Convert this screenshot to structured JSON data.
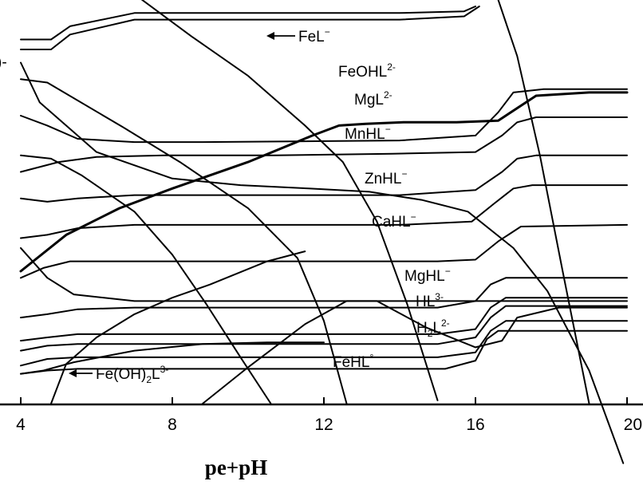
{
  "chart_data": {
    "type": "line",
    "title": "",
    "xlabel": "pe+pH",
    "ylabel": "",
    "xlim": [
      4,
      20
    ],
    "xticks": [
      4,
      8,
      12,
      16,
      20
    ],
    "grid": false,
    "legend": "none",
    "labels": [
      {
        "key": "fel",
        "base": "FeL",
        "sup": "−",
        "arrow": "left"
      },
      {
        "key": "feohl",
        "base": "FeOHL",
        "sup": "2-"
      },
      {
        "key": "mgl",
        "base": "MgL",
        "sup": "2-"
      },
      {
        "key": "mnhl",
        "base": "MnHL",
        "sup": "−"
      },
      {
        "key": "znhl",
        "base": "ZnHL",
        "sup": "−"
      },
      {
        "key": "cahl",
        "base": "CaHL",
        "sup": "−"
      },
      {
        "key": "mghl",
        "base": "MgHL",
        "sup": "−"
      },
      {
        "key": "hl",
        "base": "HL",
        "sup": "3-"
      },
      {
        "key": "h2l",
        "base": "H",
        "sub": "2",
        "base2": "L",
        "sup": "2-"
      },
      {
        "key": "fehl",
        "base": "FeHL",
        "sup": "°"
      },
      {
        "key": "feoh2l",
        "base": "Fe(OH)",
        "sub": "2",
        "base2": "L",
        "sup": "3-",
        "arrow": "left"
      },
      {
        "key": "clipped",
        "base": ")-"
      }
    ],
    "series": [
      {
        "x": [
          4,
          4.8,
          5.3,
          7,
          14,
          15.7,
          16
        ],
        "y": [
          11.0,
          11.0,
          11.4,
          11.8,
          11.8,
          11.85,
          12.0
        ]
      },
      {
        "x": [
          4,
          4.8,
          5.3,
          7,
          14,
          15.7,
          16.1
        ],
        "y": [
          10.7,
          10.7,
          11.15,
          11.6,
          11.6,
          11.7,
          12.0
        ]
      },
      {
        "x": [
          4,
          4.5,
          6,
          8,
          9.8,
          11.6,
          13.2,
          14.6,
          15.8,
          17,
          17.9,
          19,
          19.9
        ],
        "y": [
          10.3,
          9.1,
          7.6,
          6.8,
          6.6,
          6.5,
          6.4,
          6.15,
          5.8,
          4.7,
          3.4,
          1.0,
          -1.8
        ]
      },
      {
        "x": [
          7.2,
          8.5,
          10,
          11.5,
          12.5,
          13.4,
          14.2,
          15
        ],
        "y": [
          12.2,
          11.1,
          9.9,
          8.4,
          7.3,
          5.5,
          3.0,
          0.1
        ]
      },
      {
        "x": [
          4,
          4.7,
          6.7,
          8.2,
          10,
          11.3,
          12,
          12.6
        ],
        "y": [
          9.8,
          9.7,
          8.35,
          7.3,
          5.9,
          4.4,
          2.5,
          0.0
        ]
      },
      {
        "x": [
          4,
          4.8,
          5.6,
          7,
          8,
          8.9,
          9.8,
          10.6
        ],
        "y": [
          7.5,
          7.4,
          6.9,
          5.8,
          4.5,
          3.0,
          1.4,
          0.0
        ]
      },
      {
        "x": [
          4,
          4.7,
          5.4,
          7,
          12,
          17,
          19,
          20
        ],
        "y": [
          4.7,
          3.8,
          3.3,
          3.1,
          3.1,
          3.1,
          3.1,
          3.1
        ]
      },
      {
        "x": [
          4,
          5.2,
          6.6,
          8,
          10,
          11.7,
          12.4,
          13.1,
          14.1,
          15.5,
          16.6,
          17.6,
          19,
          20
        ],
        "y": [
          4.0,
          5.1,
          5.9,
          6.5,
          7.3,
          8.1,
          8.4,
          8.45,
          8.5,
          8.5,
          8.55,
          9.3,
          9.4,
          9.4
        ]
      },
      {
        "x": [
          8.8,
          10,
          11.5,
          12.6,
          13.4,
          14.7,
          16,
          16.7,
          17.1,
          18.2,
          20
        ],
        "y": [
          0.0,
          1.1,
          2.4,
          3.1,
          3.1,
          2.3,
          1.7,
          1.9,
          2.6,
          2.9,
          2.9
        ]
      },
      {
        "x": [
          4.8,
          5.2,
          6,
          7,
          8,
          9,
          10.5,
          11.5
        ],
        "y": [
          0.0,
          1.2,
          2.0,
          2.7,
          3.2,
          3.6,
          4.3,
          4.6
        ]
      },
      {
        "x": [
          4,
          4.7,
          5.5,
          7,
          8.8,
          14,
          16,
          16.6,
          17,
          17.8,
          20
        ],
        "y": [
          8.7,
          8.4,
          8.0,
          7.9,
          7.9,
          7.95,
          8.1,
          8.8,
          9.4,
          9.5,
          9.5
        ]
      },
      {
        "x": [
          4,
          5,
          6,
          7.8,
          10.7,
          13.8,
          16,
          16.7,
          17.1,
          17.6,
          20
        ],
        "y": [
          7.0,
          7.3,
          7.45,
          7.5,
          7.5,
          7.55,
          7.6,
          8.1,
          8.5,
          8.65,
          8.65
        ]
      },
      {
        "x": [
          4,
          4.7,
          5.5,
          7,
          10,
          14,
          16,
          16.7,
          17.1,
          17.6,
          20
        ],
        "y": [
          6.2,
          6.1,
          6.2,
          6.3,
          6.3,
          6.3,
          6.45,
          7.0,
          7.4,
          7.5,
          7.5
        ]
      },
      {
        "x": [
          4,
          4.7,
          5.5,
          7,
          10,
          14,
          15.9,
          16.5,
          17,
          17.5,
          20
        ],
        "y": [
          5.0,
          5.1,
          5.3,
          5.4,
          5.4,
          5.4,
          5.5,
          6.05,
          6.5,
          6.6,
          6.6
        ]
      },
      {
        "x": [
          4,
          4.6,
          5.3,
          7,
          10,
          15,
          16,
          16.6,
          17.2,
          20
        ],
        "y": [
          3.8,
          4.1,
          4.3,
          4.3,
          4.3,
          4.3,
          4.35,
          4.9,
          5.35,
          5.4
        ]
      },
      {
        "x": [
          4,
          4.7,
          5.5,
          7,
          10,
          15,
          16,
          16.4,
          16.8,
          20
        ],
        "y": [
          2.6,
          2.7,
          2.85,
          2.9,
          2.9,
          2.9,
          3.1,
          3.6,
          3.8,
          3.8
        ]
      },
      {
        "x": [
          4,
          4.7,
          5.5,
          7,
          10,
          15,
          16,
          16.4,
          16.8,
          20
        ],
        "y": [
          1.9,
          2.0,
          2.1,
          2.1,
          2.1,
          2.1,
          2.25,
          2.9,
          3.2,
          3.2
        ]
      },
      {
        "x": [
          4,
          4.7,
          5.5,
          7,
          10,
          15,
          16,
          16.4,
          16.8,
          20
        ],
        "y": [
          1.6,
          1.75,
          1.8,
          1.8,
          1.8,
          1.8,
          2.0,
          2.6,
          2.95,
          2.95
        ]
      },
      {
        "x": [
          4,
          4.7,
          5.5,
          7,
          10,
          15,
          16,
          16.4,
          16.8,
          20
        ],
        "y": [
          1.15,
          1.35,
          1.4,
          1.4,
          1.4,
          1.4,
          1.55,
          2.2,
          2.5,
          2.5
        ]
      },
      {
        "x": [
          4,
          4.7,
          5.5,
          7,
          10,
          15.2,
          16,
          16.3,
          16.6,
          20
        ],
        "y": [
          0.9,
          1.0,
          1.05,
          1.05,
          1.05,
          1.05,
          1.3,
          1.95,
          2.2,
          2.2
        ]
      },
      {
        "x": [
          4,
          4.6,
          5.4,
          7,
          8.8,
          10.5,
          12
        ],
        "y": [
          0.9,
          1.0,
          1.25,
          1.6,
          1.8,
          1.85,
          1.85
        ]
      },
      {
        "x": [
          16.6,
          17.1,
          17.7,
          18.3,
          19.0
        ],
        "y": [
          12.2,
          10.5,
          7.5,
          4.0,
          0.0
        ]
      }
    ]
  }
}
